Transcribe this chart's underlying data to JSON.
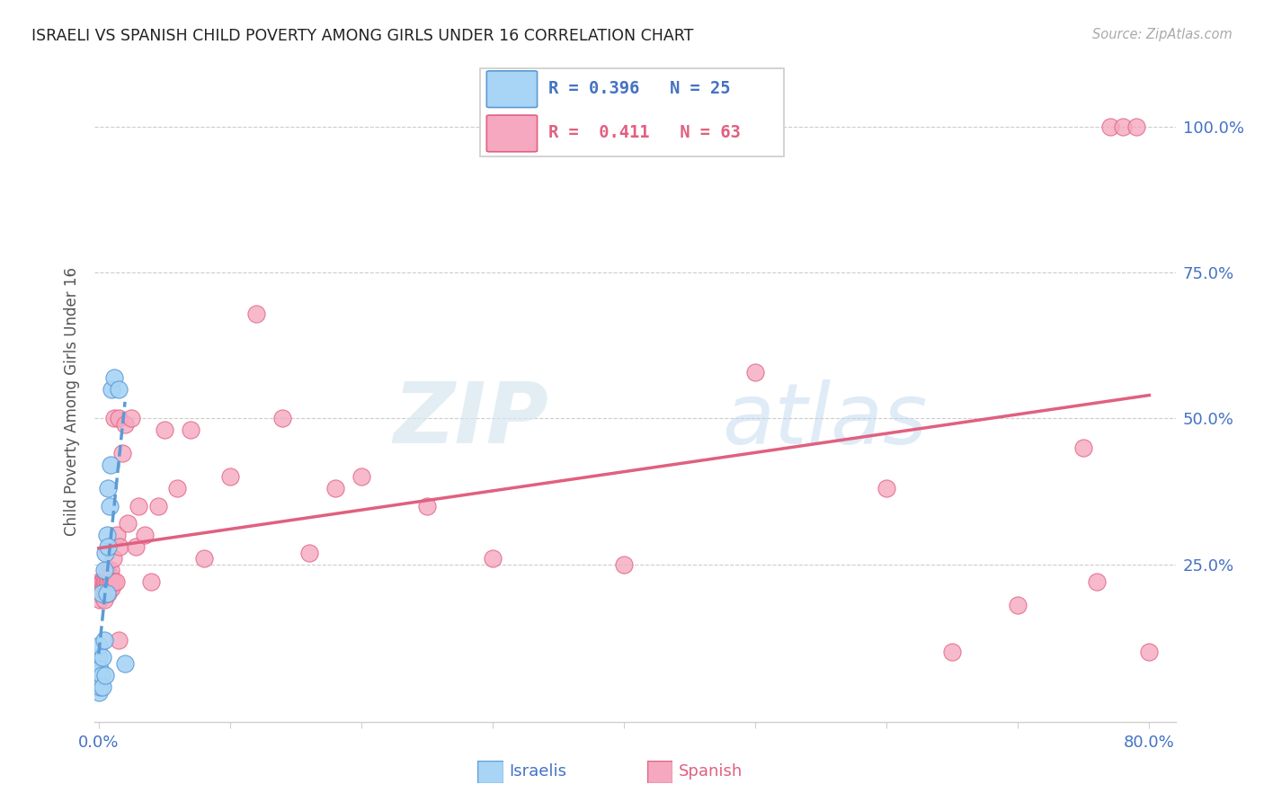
{
  "title": "ISRAELI VS SPANISH CHILD POVERTY AMONG GIRLS UNDER 16 CORRELATION CHART",
  "source": "Source: ZipAtlas.com",
  "ylabel": "Child Poverty Among Girls Under 16",
  "xlim": [
    -0.003,
    0.82
  ],
  "ylim": [
    -0.02,
    1.08
  ],
  "xticks": [
    0.0,
    0.1,
    0.2,
    0.3,
    0.4,
    0.5,
    0.6,
    0.7,
    0.8
  ],
  "xticklabels": [
    "0.0%",
    "",
    "",
    "",
    "",
    "",
    "",
    "",
    "80.0%"
  ],
  "yticks": [
    0.0,
    0.25,
    0.5,
    0.75,
    1.0
  ],
  "yticklabels_right": [
    "",
    "25.0%",
    "50.0%",
    "75.0%",
    "100.0%"
  ],
  "israeli_color": "#a8d4f5",
  "spanish_color": "#f5a8c0",
  "israeli_edge_color": "#5b9bd5",
  "spanish_edge_color": "#e06080",
  "watermark_zip": "ZIP",
  "watermark_atlas": "atlas",
  "israeli_R": 0.396,
  "israeli_N": 25,
  "spanish_R": 0.411,
  "spanish_N": 63,
  "israeli_x": [
    0.0,
    0.0,
    0.0,
    0.0,
    0.0,
    0.001,
    0.001,
    0.002,
    0.002,
    0.003,
    0.003,
    0.004,
    0.004,
    0.005,
    0.005,
    0.006,
    0.006,
    0.007,
    0.007,
    0.008,
    0.009,
    0.01,
    0.012,
    0.015,
    0.02
  ],
  "israeli_y": [
    0.03,
    0.05,
    0.07,
    0.09,
    0.11,
    0.04,
    0.07,
    0.06,
    0.2,
    0.04,
    0.09,
    0.12,
    0.24,
    0.06,
    0.27,
    0.2,
    0.3,
    0.28,
    0.38,
    0.35,
    0.42,
    0.55,
    0.57,
    0.55,
    0.08
  ],
  "spanish_x": [
    0.0,
    0.0,
    0.001,
    0.001,
    0.002,
    0.002,
    0.003,
    0.003,
    0.004,
    0.004,
    0.005,
    0.005,
    0.006,
    0.006,
    0.006,
    0.007,
    0.007,
    0.008,
    0.008,
    0.009,
    0.009,
    0.01,
    0.01,
    0.011,
    0.012,
    0.012,
    0.013,
    0.014,
    0.015,
    0.015,
    0.016,
    0.018,
    0.02,
    0.022,
    0.025,
    0.028,
    0.03,
    0.035,
    0.04,
    0.045,
    0.05,
    0.06,
    0.07,
    0.08,
    0.1,
    0.12,
    0.14,
    0.16,
    0.18,
    0.2,
    0.25,
    0.3,
    0.4,
    0.5,
    0.6,
    0.65,
    0.7,
    0.75,
    0.76,
    0.77,
    0.78,
    0.79,
    0.8
  ],
  "spanish_y": [
    0.2,
    0.22,
    0.19,
    0.21,
    0.2,
    0.22,
    0.21,
    0.22,
    0.19,
    0.22,
    0.2,
    0.22,
    0.21,
    0.22,
    0.24,
    0.2,
    0.22,
    0.21,
    0.22,
    0.23,
    0.24,
    0.21,
    0.22,
    0.26,
    0.22,
    0.5,
    0.22,
    0.3,
    0.12,
    0.5,
    0.28,
    0.44,
    0.49,
    0.32,
    0.5,
    0.28,
    0.35,
    0.3,
    0.22,
    0.35,
    0.48,
    0.38,
    0.48,
    0.26,
    0.4,
    0.68,
    0.5,
    0.27,
    0.38,
    0.4,
    0.35,
    0.26,
    0.25,
    0.58,
    0.38,
    0.1,
    0.18,
    0.45,
    0.22,
    1.0,
    1.0,
    1.0,
    0.1
  ]
}
